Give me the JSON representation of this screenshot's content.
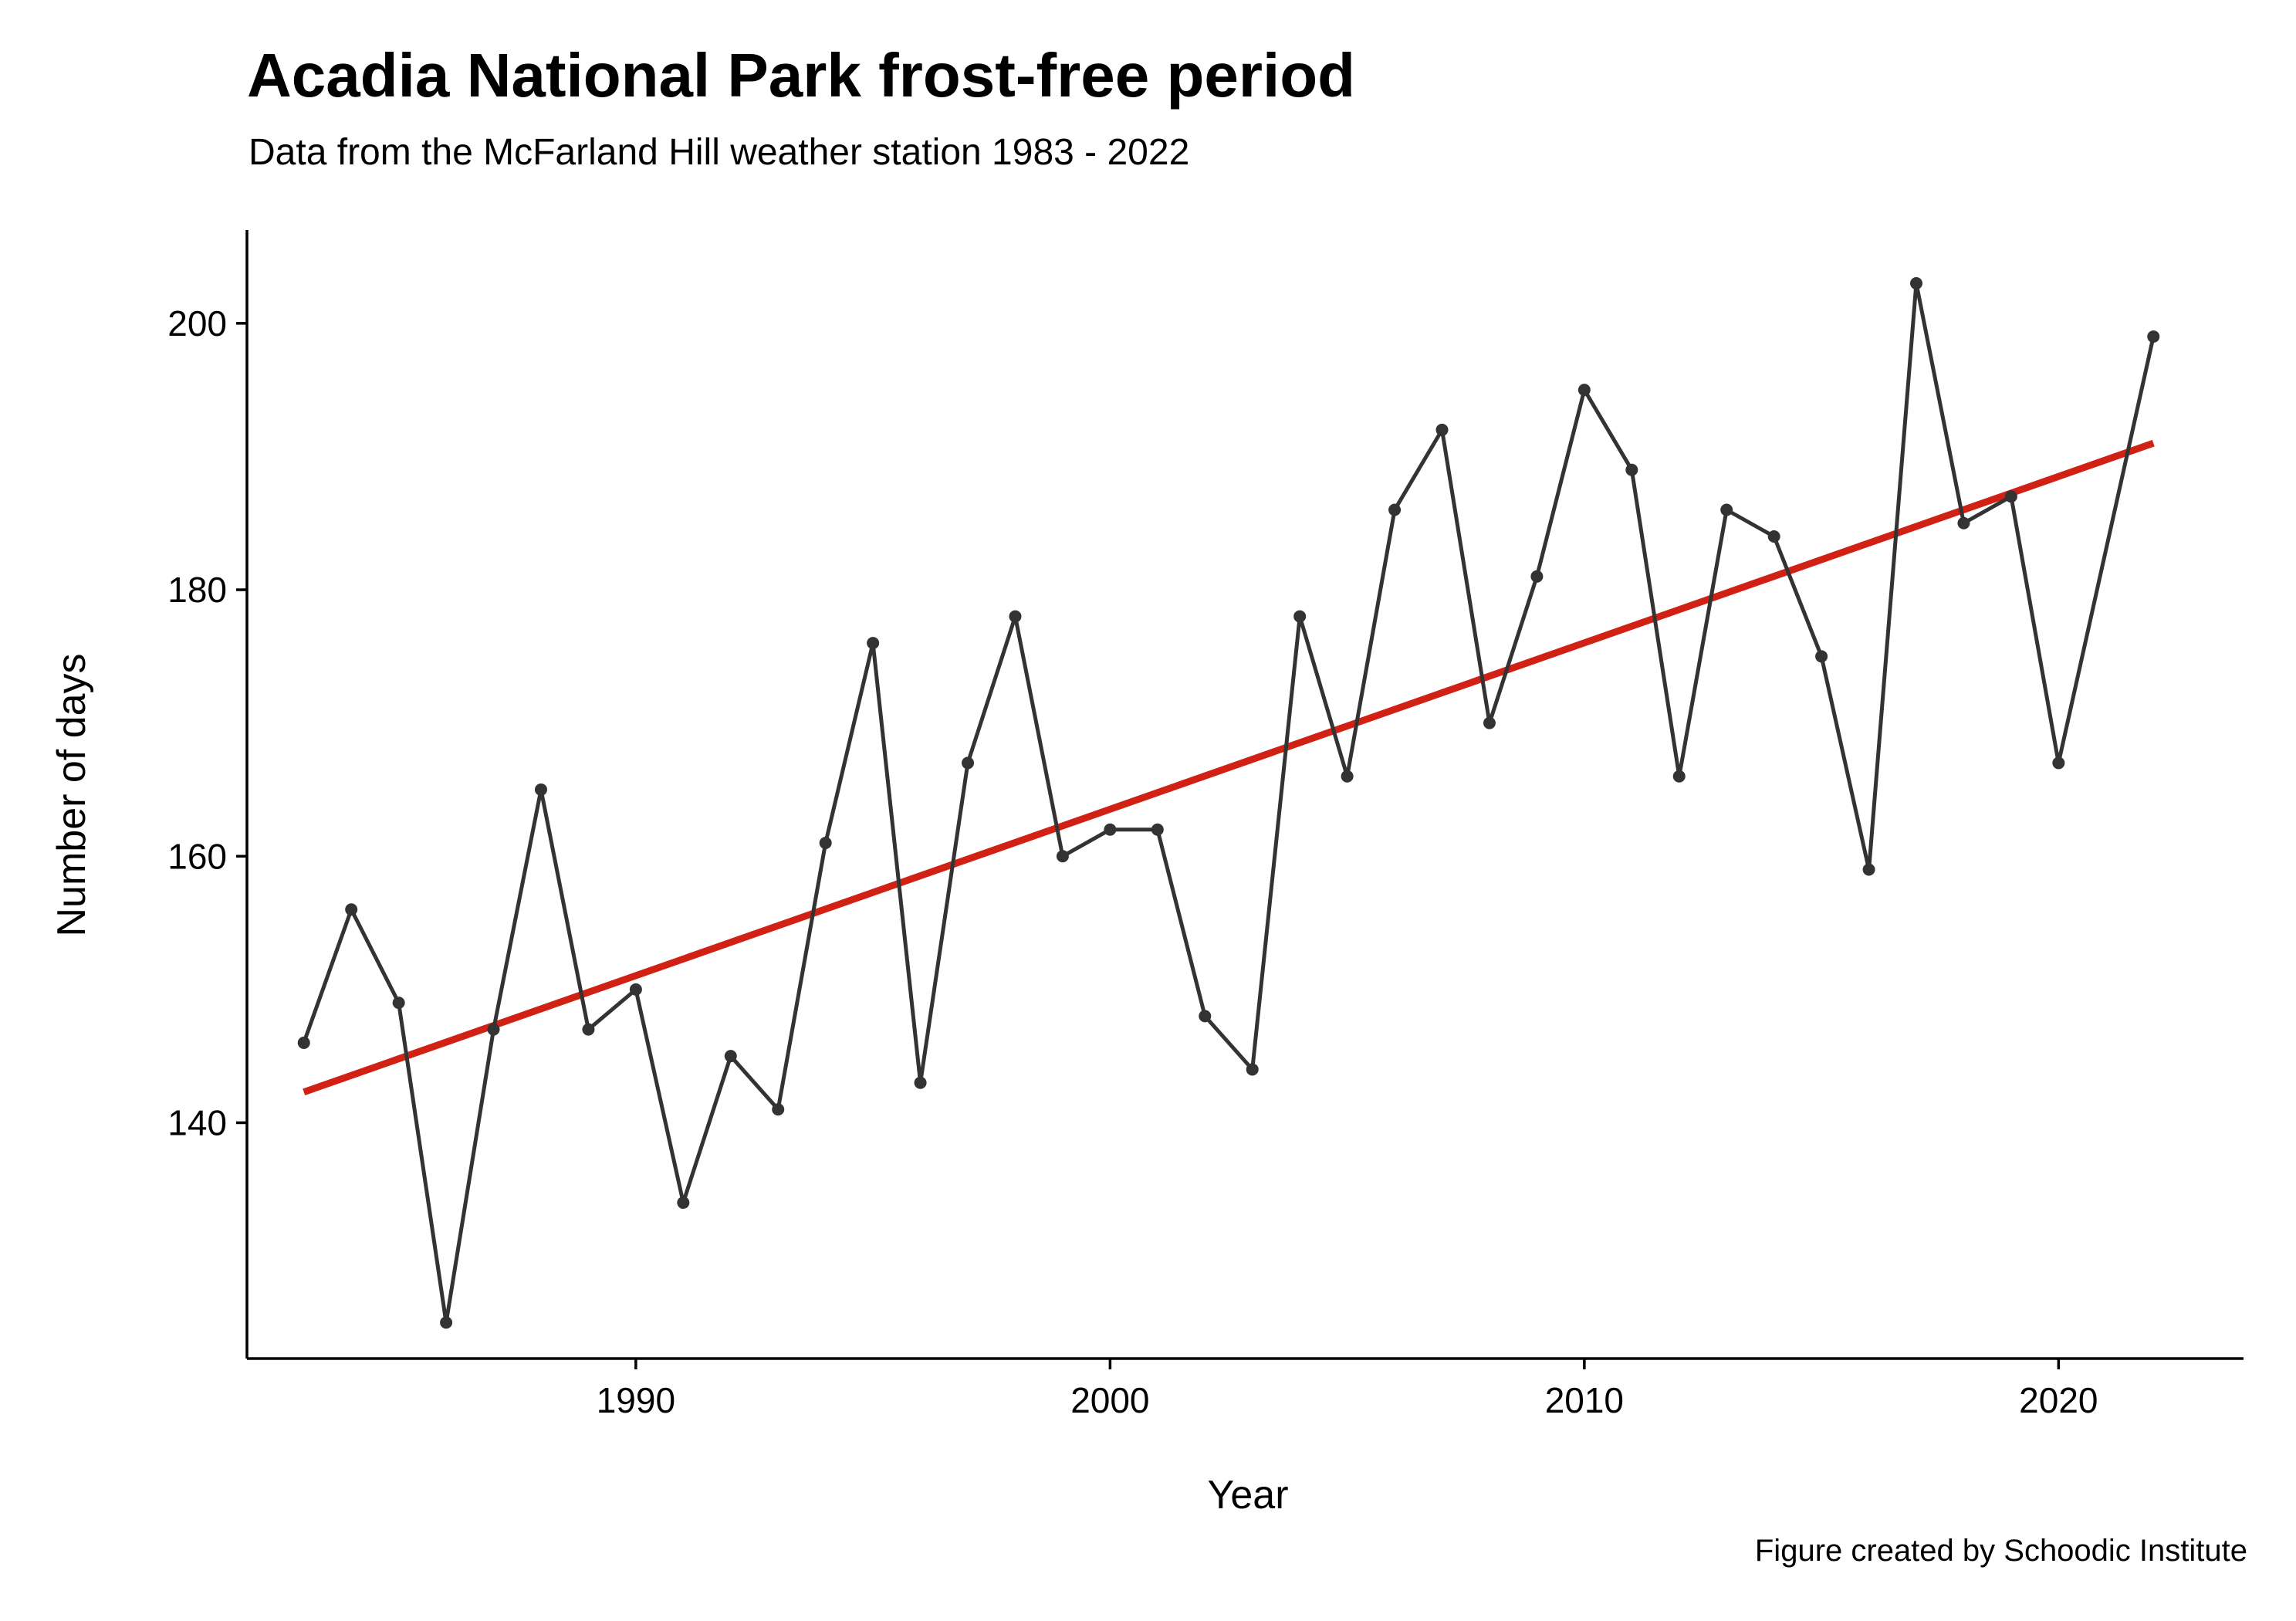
{
  "chart_data": {
    "type": "line",
    "title": "Acadia National Park frost-free period",
    "subtitle": "Data from the McFarland Hill weather station 1983 - 2022",
    "caption": "Figure created by Schoodic Institute",
    "xlabel": "Year",
    "ylabel": "Number of days",
    "x_ticks": [
      1990,
      2000,
      2010,
      2020
    ],
    "y_ticks": [
      140,
      160,
      180,
      200
    ],
    "xlim": [
      1981.8,
      2023.9
    ],
    "ylim": [
      122.3,
      207.0
    ],
    "grid": false,
    "series": [
      {
        "color": "#333333",
        "style": "line-with-points",
        "x": [
          1983,
          1984,
          1985,
          1986,
          1987,
          1988,
          1989,
          1990,
          1991,
          1992,
          1993,
          1994,
          1995,
          1996,
          1997,
          1998,
          1999,
          2000,
          2001,
          2002,
          2003,
          2004,
          2005,
          2006,
          2007,
          2008,
          2009,
          2010,
          2011,
          2012,
          2013,
          2014,
          2015,
          2016,
          2017,
          2018,
          2019,
          2020,
          2022
        ],
        "values": [
          146,
          156,
          149,
          125,
          147,
          165,
          147,
          150,
          134,
          145,
          141,
          161,
          176,
          143,
          167,
          178,
          160,
          162,
          162,
          148,
          144,
          178,
          166,
          186,
          192,
          170,
          181,
          195,
          189,
          166,
          186,
          184,
          175,
          159,
          203,
          185,
          187,
          167,
          199
        ]
      }
    ],
    "trend_line": {
      "color": "#d02114",
      "x": [
        1983,
        2022
      ],
      "values": [
        142.3,
        191.0
      ]
    }
  }
}
